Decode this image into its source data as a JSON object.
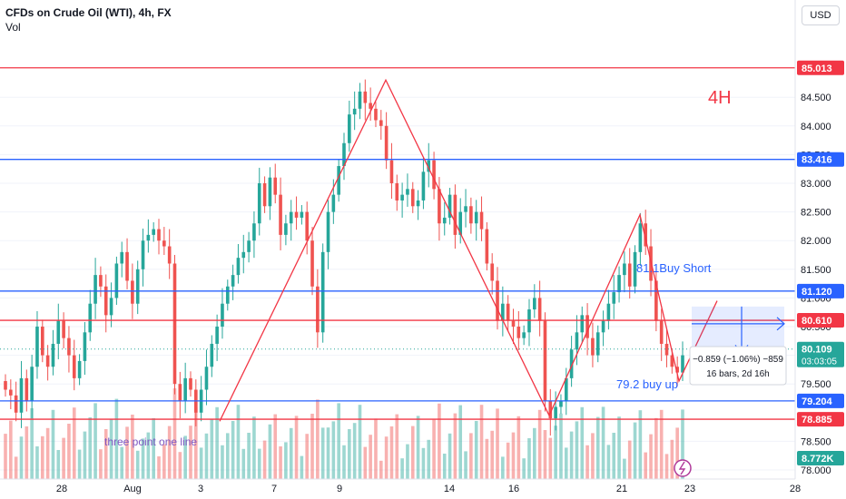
{
  "header": {
    "title": "CFDs on Crude Oil (WTI), 4h, FX",
    "indicator": "Vol",
    "currency": "USD"
  },
  "annotations": {
    "timeframe": "4H",
    "short_label": "81.1Buy Short",
    "buy_label": "79.2 buy up",
    "pattern_label": "three point one line",
    "measure_line1": "−0.859 (−1.06%) −859",
    "measure_line2": "16 bars, 2d 16h"
  },
  "colors": {
    "up": "#26a69a",
    "down": "#ef5350",
    "red_line": "#f23645",
    "blue_line": "#2962ff",
    "text_blue": "#2962ff",
    "purple": "#7e57c2"
  },
  "chart_data": {
    "type": "candlestick",
    "title": "CFDs on Crude Oil (WTI), 4h, FX",
    "ylim": [
      78.0,
      85.5
    ],
    "y_ticks": [
      "78.000",
      "78.500",
      "79.500",
      "80.000",
      "80.500",
      "81.000",
      "81.500",
      "82.000",
      "82.500",
      "83.000",
      "83.500",
      "84.000",
      "84.500"
    ],
    "x_ticks": [
      "28",
      "Aug",
      "3",
      "7",
      "9",
      "14",
      "16",
      "21",
      "23",
      "28"
    ],
    "levels": [
      {
        "value": 85.013,
        "label": "85.013",
        "color": "red"
      },
      {
        "value": 83.416,
        "label": "83.416",
        "color": "blue"
      },
      {
        "value": 81.12,
        "label": "81.120",
        "color": "blue"
      },
      {
        "value": 80.61,
        "label": "80.610",
        "color": "red"
      },
      {
        "value": 79.204,
        "label": "79.204",
        "color": "blue"
      },
      {
        "value": 78.885,
        "label": "78.885",
        "color": "red"
      }
    ],
    "last_price": {
      "value": 80.109,
      "label": "80.109",
      "countdown": "03:03:05"
    },
    "volume_last": "8.772K",
    "closes": [
      79.4,
      79.3,
      79.0,
      79.6,
      79.2,
      79.8,
      80.5,
      80.0,
      79.8,
      80.2,
      80.6,
      80.3,
      80.0,
      79.6,
      79.9,
      80.4,
      80.9,
      81.4,
      81.2,
      80.7,
      81.0,
      81.6,
      81.8,
      81.3,
      80.9,
      81.5,
      82.0,
      82.1,
      82.2,
      82.0,
      81.9,
      81.6,
      79.5,
      79.2,
      79.6,
      79.4,
      79.0,
      79.4,
      79.8,
      80.2,
      80.5,
      80.9,
      81.2,
      81.4,
      81.7,
      81.8,
      82.0,
      82.3,
      83.0,
      82.6,
      83.1,
      82.8,
      82.1,
      82.3,
      82.5,
      82.4,
      82.5,
      82.0,
      81.2,
      80.4,
      81.8,
      82.5,
      82.8,
      83.3,
      83.7,
      84.2,
      84.3,
      84.6,
      84.4,
      84.3,
      84.1,
      84.0,
      83.4,
      83.0,
      82.7,
      82.8,
      82.9,
      82.6,
      82.7,
      83.2,
      83.4,
      82.9,
      82.3,
      82.4,
      82.8,
      82.1,
      82.5,
      82.6,
      82.3,
      82.5,
      82.2,
      81.6,
      81.3,
      80.6,
      80.9,
      80.6,
      80.5,
      80.3,
      80.4,
      80.8,
      81.0,
      80.6,
      79.2,
      78.9,
      79.1,
      79.2,
      79.6,
      80.1,
      80.4,
      80.7,
      80.3,
      80.0,
      80.4,
      80.6,
      80.9,
      81.1,
      81.4,
      81.6,
      81.2,
      81.8,
      82.3,
      81.9,
      81.3,
      80.6,
      80.2,
      80.0,
      79.8,
      79.7,
      80.0
    ]
  }
}
